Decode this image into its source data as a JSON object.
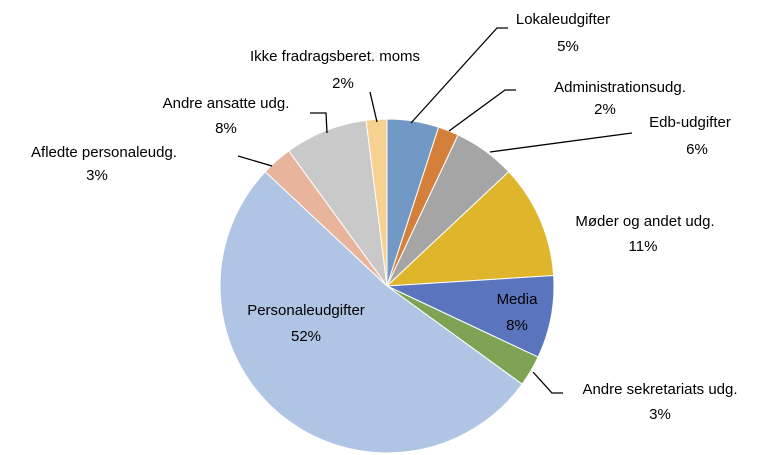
{
  "chart_data": {
    "type": "pie",
    "categories": [
      "Lokaleudgifter",
      "Administrationsudg.",
      "Edb-udgifter",
      "Møder og andet udg.",
      "Media",
      "Andre sekretariats udg.",
      "Personaleudgifter",
      "Afledte personaleudg.",
      "Andre ansatte udg.",
      "Ikke fradragsberet. moms"
    ],
    "values": [
      5,
      2,
      6,
      11,
      8,
      3,
      52,
      3,
      8,
      2
    ],
    "value_labels": [
      "5%",
      "2%",
      "6%",
      "11%",
      "8%",
      "3%",
      "52%",
      "3%",
      "8%",
      "2%"
    ],
    "colors": [
      "#7299c6",
      "#d4803a",
      "#a5a5a5",
      "#dfb52c",
      "#5a75bd",
      "#7fa355",
      "#b0c4e4",
      "#e8b59c",
      "#c9c9c9",
      "#f6d18f"
    ]
  }
}
